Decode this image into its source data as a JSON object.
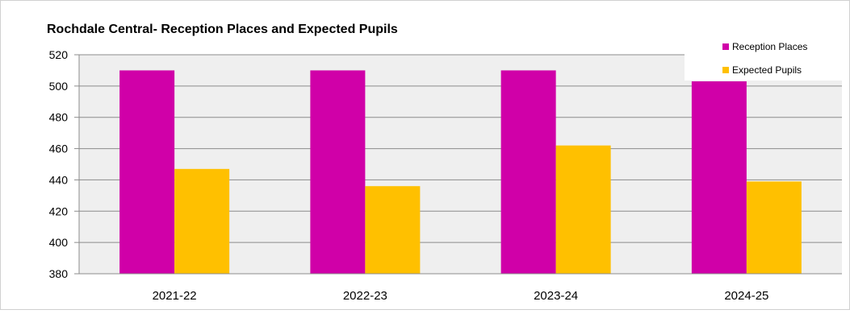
{
  "chart_data": {
    "type": "bar",
    "title": "Rochdale Central- Reception Places and Expected Pupils",
    "xlabel": "",
    "ylabel": "",
    "categories": [
      "2021-22",
      "2022-23",
      "2023-24",
      "2024-25"
    ],
    "series": [
      {
        "name": "Reception Places",
        "values": [
          510,
          510,
          510,
          503
        ],
        "color": "#D000A8"
      },
      {
        "name": "Expected Pupils",
        "values": [
          447,
          436,
          462,
          439
        ],
        "color": "#FFC000"
      }
    ],
    "ylim": [
      380,
      520
    ],
    "yticks": [
      380,
      400,
      420,
      440,
      460,
      480,
      500,
      520
    ],
    "grid": true,
    "legend_position": "top-right"
  }
}
